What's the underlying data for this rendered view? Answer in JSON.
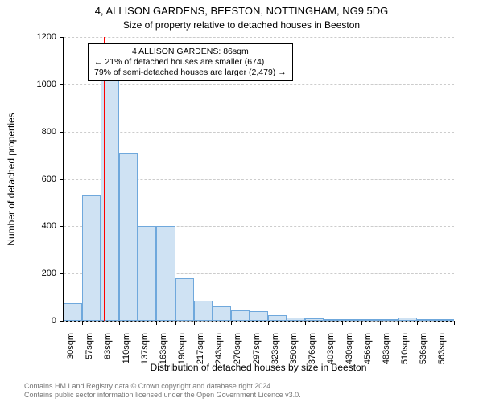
{
  "title_main": "4, ALLISON GARDENS, BEESTON, NOTTINGHAM, NG9 5DG",
  "title_sub": "Size of property relative to detached houses in Beeston",
  "y_axis_label": "Number of detached properties",
  "x_axis_label": "Distribution of detached houses by size in Beeston",
  "chart": {
    "type": "histogram",
    "ylim": [
      0,
      1200
    ],
    "y_ticks": [
      0,
      200,
      400,
      600,
      800,
      1000,
      1200
    ],
    "x_tick_labels": [
      "30sqm",
      "57sqm",
      "83sqm",
      "110sqm",
      "137sqm",
      "163sqm",
      "190sqm",
      "217sqm",
      "243sqm",
      "270sqm",
      "297sqm",
      "323sqm",
      "350sqm",
      "376sqm",
      "403sqm",
      "430sqm",
      "456sqm",
      "483sqm",
      "510sqm",
      "536sqm",
      "563sqm"
    ],
    "bars": [
      {
        "value": 75
      },
      {
        "value": 530
      },
      {
        "value": 1080
      },
      {
        "value": 710
      },
      {
        "value": 400
      },
      {
        "value": 400
      },
      {
        "value": 180
      },
      {
        "value": 85
      },
      {
        "value": 60
      },
      {
        "value": 45
      },
      {
        "value": 40
      },
      {
        "value": 25
      },
      {
        "value": 15
      },
      {
        "value": 10
      },
      {
        "value": 5
      },
      {
        "value": 5
      },
      {
        "value": 3
      },
      {
        "value": 3
      },
      {
        "value": 15
      },
      {
        "value": 2
      },
      {
        "value": 2
      }
    ],
    "bar_fill": "#cfe2f3",
    "bar_border": "#6fa8dc",
    "bar_border_width": 1,
    "grid_color": "#cccccc",
    "background_color": "#ffffff",
    "axis_color": "#000000",
    "marker": {
      "bin_index": 2,
      "position_in_bin": 0.18,
      "color": "#ff0000",
      "width": 2
    },
    "label_fontsize": 11,
    "axis_label_fontsize": 12,
    "title_fontsize": 13
  },
  "annotation": {
    "lines": [
      "4 ALLISON GARDENS: 86sqm",
      "← 21% of detached houses are smaller (674)",
      "79% of semi-detached houses are larger (2,479) →"
    ],
    "border_color": "#000000",
    "background_color": "#ffffff",
    "fontsize": 10.5
  },
  "attribution": {
    "line1": "Contains HM Land Registry data © Crown copyright and database right 2024.",
    "line2": "Contains public sector information licensed under the Open Government Licence v3.0."
  }
}
